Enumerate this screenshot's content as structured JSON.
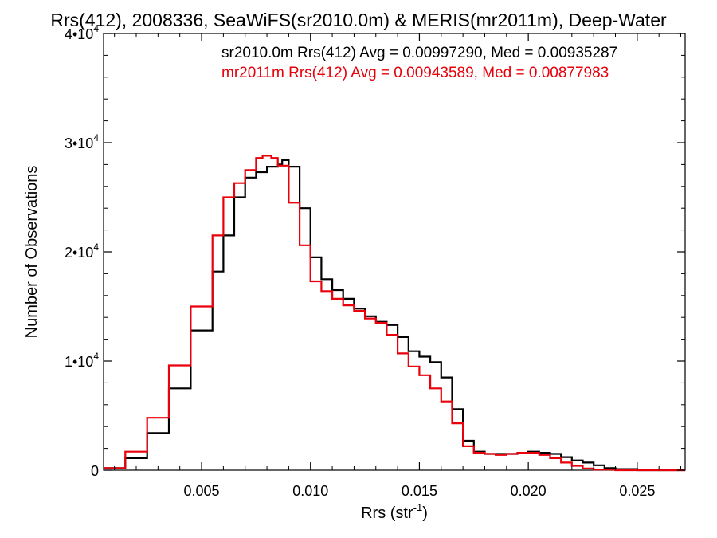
{
  "chart_data": {
    "type": "line",
    "title": "Rrs(412), 2008336, SeaWiFS(sr2010.0m) & MERIS(mr2011m), Deep-Water",
    "xlabel": "Rrs (str",
    "xlabel_sup": "-1",
    "xlabel_end": ")",
    "ylabel": "Number of Observations",
    "xlim": [
      0.0005,
      0.0272
    ],
    "ylim": [
      0,
      40000
    ],
    "xticks": [
      {
        "value": 0.005,
        "label": "0.005"
      },
      {
        "value": 0.01,
        "label": "0.010"
      },
      {
        "value": 0.015,
        "label": "0.015"
      },
      {
        "value": 0.02,
        "label": "0.020"
      },
      {
        "value": 0.025,
        "label": "0.025"
      }
    ],
    "yticks": [
      {
        "value": 0,
        "label": "0",
        "exp": ""
      },
      {
        "value": 10000,
        "label": "1•10",
        "exp": "4"
      },
      {
        "value": 20000,
        "label": "2•10",
        "exp": "4"
      },
      {
        "value": 30000,
        "label": "3•10",
        "exp": "4"
      },
      {
        "value": 40000,
        "label": "4•10",
        "exp": "4"
      }
    ],
    "legend_placement": "top-right",
    "series": [
      {
        "name": "sr2010.0m",
        "color": "#000000",
        "legend_text": "sr2010.0m Rrs(412) Avg = 0.00997290, Med = 0.00935287",
        "x": [
          0.0005,
          0.0015,
          0.0025,
          0.0035,
          0.0045,
          0.0055,
          0.006,
          0.0065,
          0.007,
          0.0075,
          0.008,
          0.0085,
          0.0087,
          0.009,
          0.0095,
          0.01,
          0.0105,
          0.011,
          0.0115,
          0.012,
          0.0125,
          0.013,
          0.0135,
          0.014,
          0.0145,
          0.015,
          0.0155,
          0.016,
          0.0165,
          0.017,
          0.0175,
          0.018,
          0.0185,
          0.019,
          0.0195,
          0.02,
          0.0205,
          0.021,
          0.0215,
          0.022,
          0.0225,
          0.023,
          0.0235,
          0.024,
          0.025,
          0.026,
          0.0272
        ],
        "y": [
          200,
          1100,
          3400,
          7500,
          12800,
          18200,
          21500,
          25000,
          26800,
          27300,
          27800,
          28000,
          28400,
          27800,
          24000,
          19500,
          17500,
          16500,
          15700,
          14800,
          14100,
          13600,
          13300,
          12200,
          10900,
          10400,
          9900,
          8500,
          5600,
          2700,
          1700,
          1500,
          1500,
          1500,
          1600,
          1700,
          1600,
          1500,
          1200,
          900,
          700,
          450,
          200,
          100,
          0,
          0,
          0
        ]
      },
      {
        "name": "mr2011m",
        "color": "#e8000b",
        "legend_text": "mr2011m Rrs(412) Avg = 0.00943589, Med = 0.00877983",
        "x": [
          0.0005,
          0.0015,
          0.0025,
          0.0035,
          0.0045,
          0.0055,
          0.006,
          0.0065,
          0.007,
          0.0075,
          0.0078,
          0.0082,
          0.0085,
          0.009,
          0.0095,
          0.01,
          0.0105,
          0.011,
          0.0115,
          0.012,
          0.0125,
          0.013,
          0.0135,
          0.014,
          0.0145,
          0.015,
          0.0155,
          0.016,
          0.0165,
          0.017,
          0.0175,
          0.018,
          0.0185,
          0.019,
          0.0195,
          0.02,
          0.0205,
          0.021,
          0.0215,
          0.022,
          0.0225,
          0.023,
          0.024,
          0.025,
          0.0272
        ],
        "y": [
          200,
          1700,
          4800,
          9600,
          15000,
          21500,
          25000,
          26300,
          27500,
          28600,
          28800,
          28600,
          27900,
          24500,
          20600,
          17300,
          16400,
          15700,
          15100,
          14600,
          13900,
          13500,
          12400,
          10700,
          9500,
          8700,
          7500,
          6300,
          4300,
          2200,
          1600,
          1500,
          1400,
          1500,
          1600,
          1600,
          1400,
          1100,
          700,
          400,
          150,
          50,
          0,
          0,
          0
        ]
      }
    ]
  }
}
